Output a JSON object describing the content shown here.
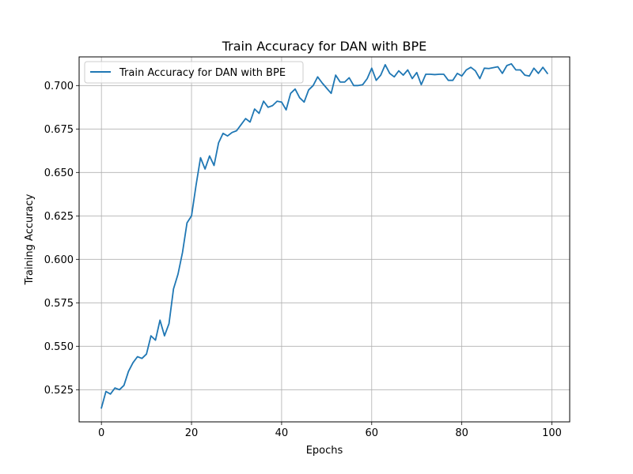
{
  "chart_data": {
    "type": "line",
    "title": "Train Accuracy for DAN with BPE",
    "xlabel": "Epochs",
    "ylabel": "Training Accuracy",
    "xlim": [
      -4.95,
      103.95
    ],
    "ylim": [
      0.5065,
      0.7165
    ],
    "xticks": [
      0,
      20,
      40,
      60,
      80,
      100
    ],
    "yticks": [
      0.525,
      0.55,
      0.575,
      0.6,
      0.625,
      0.65,
      0.675,
      0.7
    ],
    "ytick_labels": [
      "0.525",
      "0.550",
      "0.575",
      "0.600",
      "0.625",
      "0.650",
      "0.675",
      "0.700"
    ],
    "grid": true,
    "legend_position": "top-left",
    "series": [
      {
        "name": "Train Accuracy for DAN with BPE",
        "color": "#1f77b4",
        "x": [
          0,
          1,
          2,
          3,
          4,
          5,
          6,
          7,
          8,
          9,
          10,
          11,
          12,
          13,
          14,
          15,
          16,
          17,
          18,
          19,
          20,
          21,
          22,
          23,
          24,
          25,
          26,
          27,
          28,
          29,
          30,
          31,
          32,
          33,
          34,
          35,
          36,
          37,
          38,
          39,
          40,
          41,
          42,
          43,
          44,
          45,
          46,
          47,
          48,
          49,
          50,
          51,
          52,
          53,
          54,
          55,
          56,
          57,
          58,
          59,
          60,
          61,
          62,
          63,
          64,
          65,
          66,
          67,
          68,
          69,
          70,
          71,
          72,
          73,
          74,
          75,
          76,
          77,
          78,
          79,
          80,
          81,
          82,
          83,
          84,
          85,
          86,
          87,
          88,
          89,
          90,
          91,
          92,
          93,
          94,
          95,
          96,
          97,
          98,
          99
        ],
        "values": [
          0.5145,
          0.524,
          0.5225,
          0.526,
          0.525,
          0.5275,
          0.5355,
          0.5405,
          0.544,
          0.543,
          0.5455,
          0.556,
          0.5535,
          0.565,
          0.556,
          0.563,
          0.583,
          0.5915,
          0.604,
          0.621,
          0.625,
          0.6425,
          0.6585,
          0.652,
          0.6595,
          0.654,
          0.667,
          0.6725,
          0.671,
          0.673,
          0.674,
          0.6775,
          0.681,
          0.679,
          0.6865,
          0.684,
          0.691,
          0.6875,
          0.6885,
          0.691,
          0.6905,
          0.686,
          0.6955,
          0.698,
          0.693,
          0.6905,
          0.6975,
          0.7,
          0.705,
          0.7015,
          0.6985,
          0.6955,
          0.706,
          0.702,
          0.702,
          0.7045,
          0.7,
          0.7,
          0.7005,
          0.704,
          0.71,
          0.703,
          0.706,
          0.712,
          0.707,
          0.705,
          0.7085,
          0.706,
          0.709,
          0.704,
          0.7075,
          0.7005,
          0.7065,
          0.7065,
          0.7063,
          0.7065,
          0.7065,
          0.703,
          0.703,
          0.707,
          0.7055,
          0.709,
          0.7105,
          0.7085,
          0.704,
          0.71,
          0.7098,
          0.7103,
          0.7108,
          0.707,
          0.7115,
          0.7125,
          0.709,
          0.709,
          0.706,
          0.7055,
          0.71,
          0.707,
          0.7105,
          0.707
        ]
      }
    ]
  }
}
